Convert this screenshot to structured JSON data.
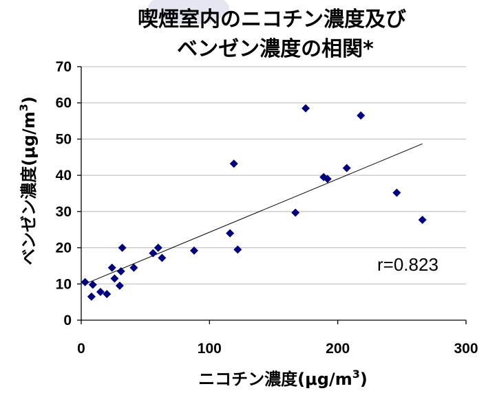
{
  "chart_data": {
    "type": "scatter",
    "title_lines": [
      "喫煙室内のニコチン濃度及び",
      "ベンゼン濃度の相関*"
    ],
    "xlabel": "ニコチン濃度(μg/m",
    "xlabel_sup": "3",
    "xlabel_close": ")",
    "ylabel": "ベンゼン濃度(μg/m",
    "ylabel_sup": "3",
    "ylabel_close": ")",
    "xlim": [
      0,
      300
    ],
    "ylim": [
      0,
      70
    ],
    "x_ticks": [
      "0",
      "100",
      "200",
      "300"
    ],
    "y_ticks": [
      "0",
      "10",
      "20",
      "30",
      "40",
      "50",
      "60",
      "70"
    ],
    "grid": true,
    "annotation": "r=0.823",
    "points": [
      {
        "x": 3,
        "y": 10.5
      },
      {
        "x": 8,
        "y": 6.5
      },
      {
        "x": 9,
        "y": 9.8
      },
      {
        "x": 15,
        "y": 7.8
      },
      {
        "x": 20,
        "y": 7.2
      },
      {
        "x": 24,
        "y": 14.5
      },
      {
        "x": 26,
        "y": 11.5
      },
      {
        "x": 30,
        "y": 9.5
      },
      {
        "x": 31,
        "y": 13.5
      },
      {
        "x": 32,
        "y": 20
      },
      {
        "x": 41,
        "y": 14.5
      },
      {
        "x": 56,
        "y": 18.5
      },
      {
        "x": 60,
        "y": 20
      },
      {
        "x": 63,
        "y": 17.2
      },
      {
        "x": 88,
        "y": 19.2
      },
      {
        "x": 116,
        "y": 24
      },
      {
        "x": 119,
        "y": 43.2
      },
      {
        "x": 122,
        "y": 19.5
      },
      {
        "x": 167,
        "y": 29.7
      },
      {
        "x": 175,
        "y": 58.5
      },
      {
        "x": 189,
        "y": 39.5
      },
      {
        "x": 192,
        "y": 39
      },
      {
        "x": 207,
        "y": 42
      },
      {
        "x": 218,
        "y": 56.5
      },
      {
        "x": 246,
        "y": 35.2
      },
      {
        "x": 266,
        "y": 27.7
      }
    ],
    "trendline": {
      "x": [
        5,
        266
      ],
      "y": [
        10.3,
        48.7
      ]
    },
    "colors": {
      "marker": "#00007f",
      "line": "#000000",
      "grid": "#b8b8b8",
      "decor": "#e6e6f3"
    }
  }
}
